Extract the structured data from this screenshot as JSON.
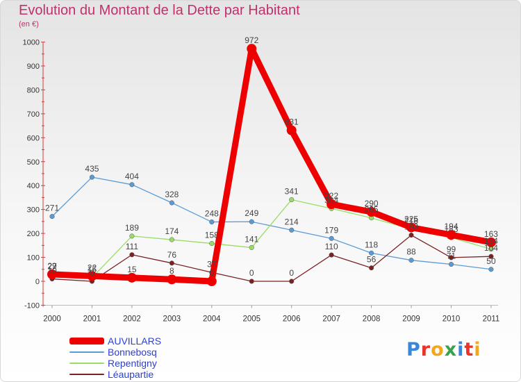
{
  "title": "Evolution du Montant de la Dette par Habitant",
  "unit": "(en €)",
  "logo": {
    "letters": [
      "P",
      "r",
      "o",
      "x",
      "i",
      "t",
      "i"
    ],
    "colors": [
      "#3a86d8",
      "#e8342a",
      "#f2a81d",
      "#3aa24a",
      "#3a86d8",
      "#e8342a",
      "#f2a81d"
    ]
  },
  "chart_data": {
    "type": "line",
    "x": [
      "2000",
      "2001",
      "2002",
      "2003",
      "2004",
      "2005",
      "2006",
      "2007",
      "2008",
      "2009",
      "2010",
      "2011"
    ],
    "ylim": [
      -100,
      1000
    ],
    "yticks": [
      -100,
      0,
      100,
      200,
      300,
      400,
      500,
      600,
      700,
      800,
      900,
      1000
    ],
    "grid": false,
    "legend_position": "bottom-left",
    "series": [
      {
        "name": "Bonnebosq",
        "color": "#5b9bd5",
        "values": [
          271,
          435,
          404,
          328,
          248,
          249,
          214,
          179,
          118,
          88,
          71,
          50
        ],
        "labels": [
          "271",
          "435",
          "404",
          "328",
          "248",
          "249",
          "214",
          "179",
          "118",
          "88",
          "71",
          "50"
        ]
      },
      {
        "name": "Repentigny",
        "color": "#99dd66",
        "values": [
          27,
          15,
          189,
          174,
          158,
          141,
          341,
          304,
          265,
          218,
          183,
          134
        ],
        "labels": [
          "27",
          "15",
          "189",
          "174",
          "158",
          "141",
          "341",
          "304",
          "265",
          "218",
          "183",
          "134"
        ]
      },
      {
        "name": "Léaupartie",
        "color": "#7a2222",
        "values": [
          10,
          0,
          111,
          76,
          37,
          0,
          0,
          110,
          56,
          193,
          99,
          104
        ],
        "labels": [
          "10",
          "0",
          "111",
          "76",
          "37",
          "0",
          "0",
          "110",
          "56",
          "193",
          "99",
          "104"
        ]
      },
      {
        "name": "AUVILLARS",
        "color": "#ee0000",
        "values": [
          29,
          22,
          15,
          8,
          0,
          972,
          631,
          322,
          290,
          225,
          194,
          163
        ],
        "labels": [
          "29",
          "22",
          "15",
          "8",
          "0",
          "972",
          "631",
          "322",
          "290",
          "225",
          "194",
          "163"
        ]
      }
    ]
  },
  "legend": [
    {
      "name": "AUVILLARS",
      "color": "#ee0000",
      "thick": true
    },
    {
      "name": "Bonnebosq",
      "color": "#5b9bd5",
      "thick": false
    },
    {
      "name": "Repentigny",
      "color": "#99dd66",
      "thick": false
    },
    {
      "name": "Léaupartie",
      "color": "#7a2222",
      "thick": false
    }
  ]
}
